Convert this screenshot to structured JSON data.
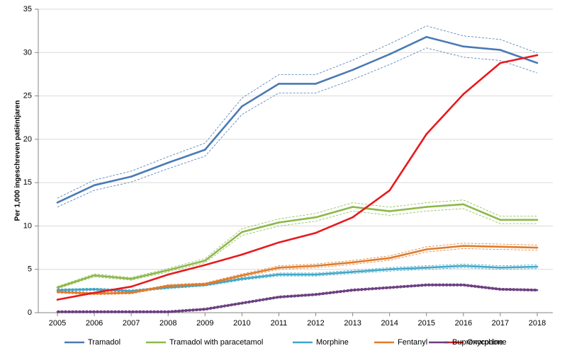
{
  "chart_data": {
    "type": "line",
    "title": "",
    "xlabel": "",
    "ylabel": "Per 1,000 ingeschreven patiëntjaren",
    "x": [
      2005,
      2006,
      2007,
      2008,
      2009,
      2010,
      2011,
      2012,
      2013,
      2014,
      2015,
      2016,
      2017,
      2018
    ],
    "ylim": [
      0,
      35
    ],
    "yticks": [
      0,
      5,
      10,
      15,
      20,
      25,
      30,
      35
    ],
    "grid": "horizontal",
    "legend_position": "bottom",
    "series": [
      {
        "name": "Tramadol",
        "color": "#4a7ab5",
        "ci": true,
        "values": [
          12.7,
          14.7,
          15.7,
          17.3,
          18.8,
          23.8,
          26.4,
          26.4,
          28.0,
          29.8,
          31.8,
          30.7,
          30.3,
          28.8
        ]
      },
      {
        "name": "Tramadol with paracetamol",
        "color": "#8cb84a",
        "ci": true,
        "values": [
          2.9,
          4.3,
          3.9,
          4.9,
          6.0,
          9.3,
          10.4,
          11.0,
          12.2,
          11.7,
          12.2,
          12.5,
          10.7,
          10.7
        ]
      },
      {
        "name": "Morphine",
        "color": "#41a6c8",
        "ci": true,
        "values": [
          2.6,
          2.7,
          2.5,
          2.9,
          3.2,
          3.9,
          4.4,
          4.4,
          4.7,
          5.0,
          5.2,
          5.4,
          5.2,
          5.3
        ]
      },
      {
        "name": "Fentanyl",
        "color": "#e07b2a",
        "ci": true,
        "values": [
          2.4,
          2.2,
          2.3,
          3.1,
          3.3,
          4.3,
          5.2,
          5.4,
          5.8,
          6.3,
          7.3,
          7.7,
          7.6,
          7.5
        ]
      },
      {
        "name": "Oxycodone",
        "color": "#e8191c",
        "ci": false,
        "values": [
          1.5,
          2.3,
          3.0,
          4.4,
          5.5,
          6.7,
          8.1,
          9.2,
          11.0,
          14.1,
          20.6,
          25.2,
          28.8,
          29.7
        ]
      },
      {
        "name": "Buprenorphine",
        "color": "#6a3d80",
        "ci": true,
        "values": [
          0.1,
          0.1,
          0.1,
          0.1,
          0.4,
          1.1,
          1.8,
          2.1,
          2.6,
          2.9,
          3.2,
          3.2,
          2.7,
          2.6
        ]
      }
    ]
  }
}
